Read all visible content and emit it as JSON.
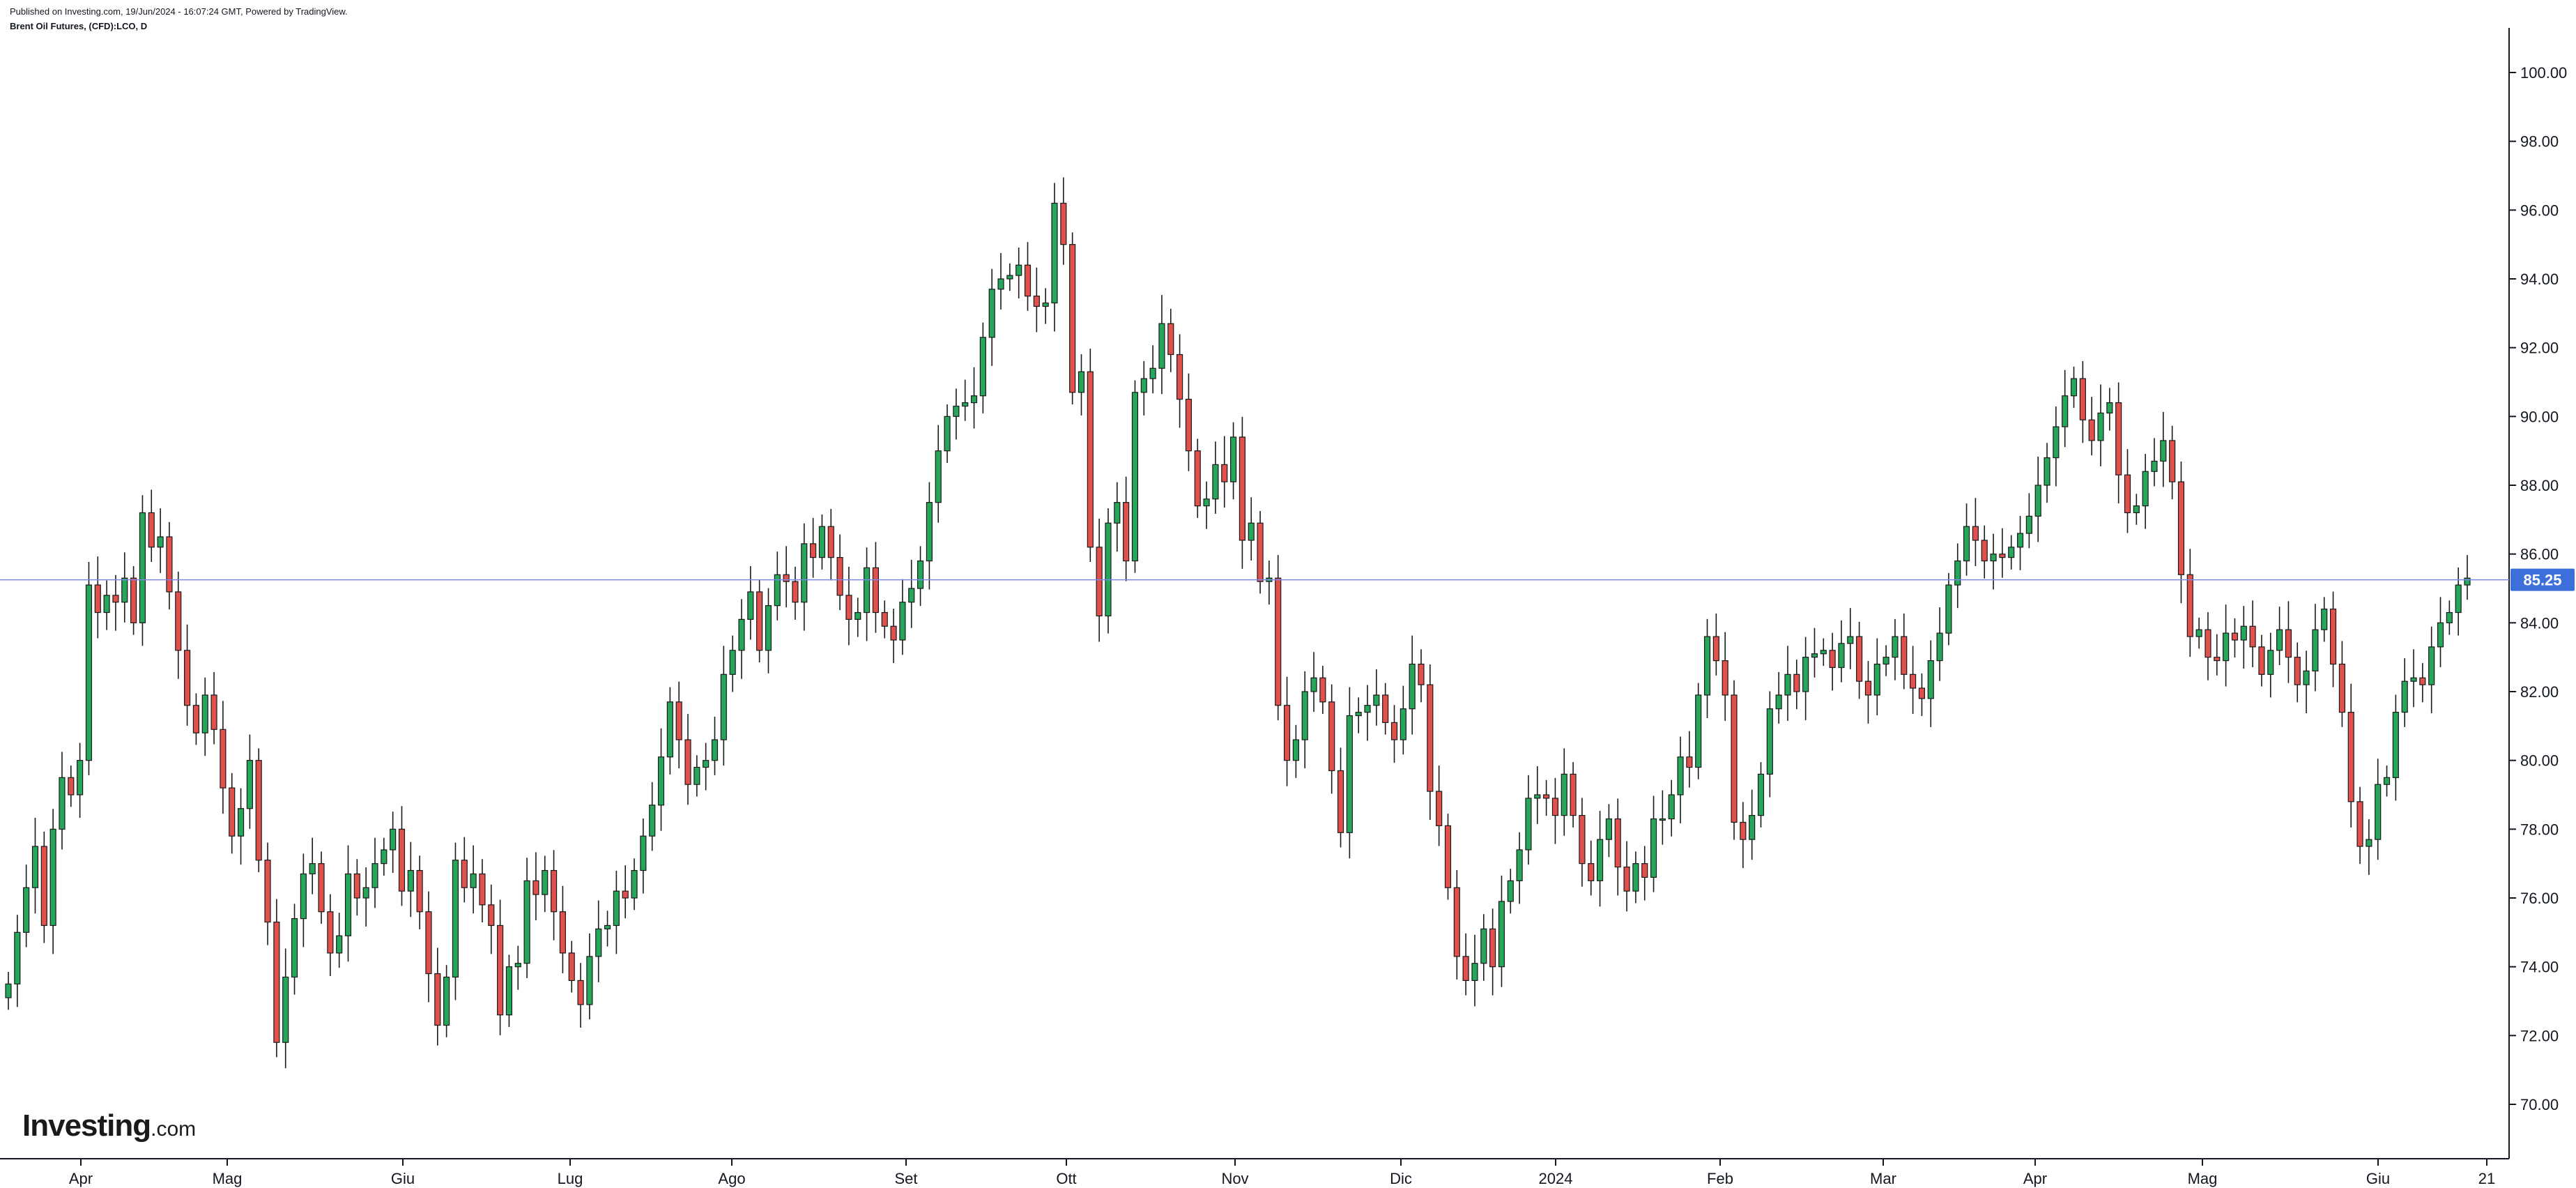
{
  "header": {
    "published": "Published on Investing.com, 19/Jun/2024 - 16:07:24 GMT, Powered by TradingView.",
    "symbol": "Brent Oil Futures, (CFD):LCO, D"
  },
  "logo": {
    "name": "Investing",
    "suffix": ".com"
  },
  "colors": {
    "up": "#26a65b",
    "down": "#e0504d",
    "price_line": "#7a86e8",
    "price_tag": "#3c6fd9"
  },
  "chart_data": {
    "type": "candlestick",
    "title": "Brent Oil Futures, (CFD):LCO, D",
    "xlabel": "",
    "ylabel": "",
    "ylim": [
      69,
      101
    ],
    "y_ticks": [
      "70.00",
      "72.00",
      "74.00",
      "76.00",
      "78.00",
      "80.00",
      "82.00",
      "84.00",
      "86.00",
      "88.00",
      "90.00",
      "92.00",
      "94.00",
      "96.00",
      "98.00",
      "100.00"
    ],
    "x_ticks": [
      "Apr",
      "Mag",
      "Giu",
      "Lug",
      "Ago",
      "Set",
      "Ott",
      "Nov",
      "Dic",
      "2024",
      "Feb",
      "Mar",
      "Apr",
      "Mag",
      "Giu",
      "21"
    ],
    "last_price": 85.25,
    "last_price_label": "85.25",
    "closes": [
      73.5,
      75.0,
      76.3,
      77.5,
      75.2,
      78.0,
      79.5,
      79.0,
      80.0,
      85.1,
      84.3,
      84.8,
      84.6,
      85.3,
      84.0,
      87.2,
      86.2,
      86.5,
      84.9,
      83.2,
      81.6,
      80.8,
      81.9,
      80.9,
      79.2,
      77.8,
      78.6,
      80.0,
      77.1,
      75.3,
      71.8,
      73.7,
      75.4,
      76.7,
      77.0,
      75.6,
      74.4,
      74.9,
      76.7,
      76.0,
      76.3,
      77.0,
      77.4,
      78.0,
      76.2,
      76.8,
      75.6,
      73.8,
      72.3,
      73.7,
      77.1,
      76.3,
      76.7,
      75.8,
      75.2,
      72.6,
      74.0,
      74.1,
      76.5,
      76.1,
      76.8,
      75.6,
      74.4,
      73.6,
      72.9,
      74.3,
      75.1,
      75.2,
      76.2,
      76.0,
      76.8,
      77.8,
      78.7,
      80.1,
      81.7,
      80.6,
      79.3,
      79.8,
      80.0,
      80.6,
      82.5,
      83.2,
      84.1,
      84.9,
      83.2,
      84.5,
      85.4,
      85.2,
      84.6,
      86.3,
      85.9,
      86.8,
      85.9,
      84.8,
      84.1,
      84.3,
      85.6,
      84.3,
      83.9,
      83.5,
      84.6,
      85.0,
      85.8,
      87.5,
      89.0,
      90.0,
      90.3,
      90.4,
      90.6,
      92.3,
      93.7,
      94.0,
      94.1,
      94.4,
      93.5,
      93.2,
      93.3,
      96.2,
      95.0,
      90.7,
      91.3,
      86.2,
      84.2,
      86.9,
      87.5,
      85.8,
      90.7,
      91.1,
      91.4,
      92.7,
      91.8,
      90.5,
      89.0,
      87.4,
      87.6,
      88.6,
      88.1,
      89.4,
      86.4,
      86.9,
      85.2,
      85.3,
      81.6,
      80.0,
      80.6,
      82.0,
      82.4,
      81.7,
      79.7,
      77.9,
      81.3,
      81.4,
      81.6,
      81.9,
      81.1,
      80.6,
      81.5,
      82.8,
      82.2,
      79.1,
      78.1,
      76.3,
      74.3,
      73.6,
      74.1,
      75.1,
      74.0,
      75.9,
      76.5,
      77.4,
      78.9,
      79.0,
      78.9,
      78.4,
      79.6,
      78.4,
      77.0,
      76.5,
      77.7,
      78.3,
      76.9,
      76.2,
      77.0,
      76.6,
      78.3,
      78.3,
      79.0,
      80.1,
      79.8,
      81.9,
      83.6,
      82.9,
      81.9,
      78.2,
      77.7,
      78.4,
      79.6,
      81.5,
      81.9,
      82.5,
      82.0,
      83.0,
      83.1,
      83.2,
      82.7,
      83.4,
      83.6,
      82.3,
      81.9,
      82.8,
      83.0,
      83.6,
      82.5,
      82.1,
      81.8,
      82.9,
      83.7,
      85.1,
      85.8,
      86.8,
      86.4,
      85.8,
      86.0,
      85.9,
      86.2,
      86.6,
      87.1,
      88.0,
      88.8,
      89.7,
      90.6,
      91.1,
      89.9,
      89.3,
      90.1,
      90.4,
      88.3,
      87.2,
      87.4,
      88.4,
      88.7,
      89.3,
      88.1,
      85.4,
      83.6,
      83.8,
      83.0,
      82.9,
      83.7,
      83.5,
      83.9,
      83.3,
      82.5,
      83.2,
      83.8,
      83.0,
      82.2,
      82.6,
      83.8,
      84.4,
      82.8,
      81.4,
      78.8,
      77.5,
      77.7,
      79.3,
      79.5,
      81.4,
      82.3,
      82.4,
      82.2,
      83.3,
      84.0,
      84.3,
      85.1,
      85.3
    ],
    "dates_note": ""
  }
}
